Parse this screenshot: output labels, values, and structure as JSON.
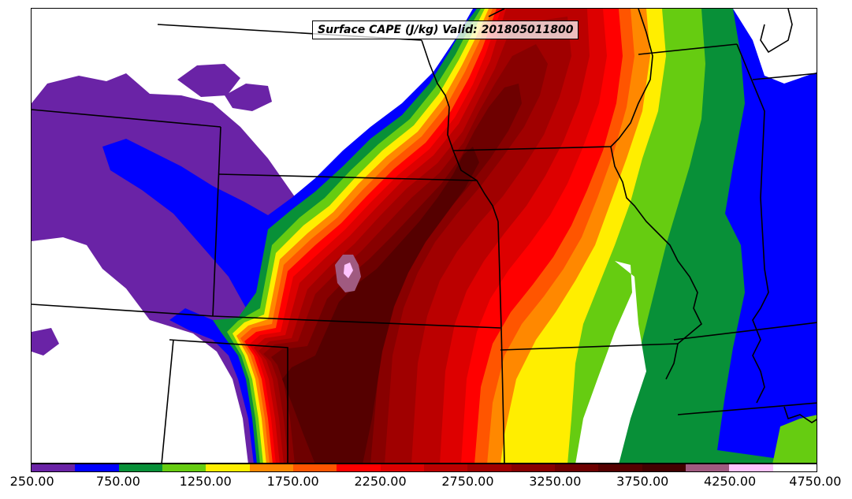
{
  "title": "Surface CAPE (J/kg) Valid: 201805011800",
  "legend": {
    "colors": [
      "#6a23a6",
      "#0000ff",
      "#089038",
      "#66cc11",
      "#ffee00",
      "#ff8800",
      "#ff5500",
      "#ff0000",
      "#dd0000",
      "#bb0000",
      "#a00000",
      "#880000",
      "#6e0000",
      "#550000",
      "#420000",
      "#a05a80",
      "#ffc4ff",
      "#ffffff"
    ],
    "tick_labels": [
      "250.00",
      "750.00",
      "1250.00",
      "1750.00",
      "2250.00",
      "2750.00",
      "3250.00",
      "3750.00",
      "4250.00",
      "4750.00"
    ],
    "min": 250,
    "max": 4750
  },
  "palette": {
    "c250": "#6a23a6",
    "c500": "#0000ff",
    "c750": "#089038",
    "c1000": "#66cc11",
    "c1250": "#ffee00",
    "c1500": "#ff8800",
    "c1750": "#ff5500",
    "c2000": "#ff0000",
    "c2250": "#dd0000",
    "c2500": "#bb0000",
    "c2750": "#a00000",
    "c3000": "#880000",
    "c3250": "#6e0000",
    "c3500": "#550000",
    "c3750": "#a05a80",
    "c4000": "#ffc4ff",
    "border": "#000000"
  }
}
